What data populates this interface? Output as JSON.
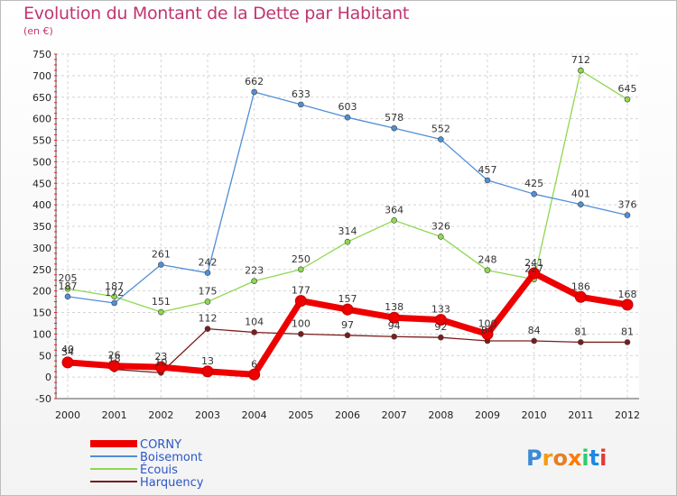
{
  "chart_data": {
    "type": "line",
    "title": "Evolution du Montant de la Dette par Habitant",
    "subtitle": "(en €)",
    "x": [
      "2000",
      "2001",
      "2002",
      "2003",
      "2004",
      "2005",
      "2006",
      "2007",
      "2008",
      "2009",
      "2010",
      "2011",
      "2012"
    ],
    "ylim": [
      -50,
      750
    ],
    "yticks": [
      -50,
      0,
      50,
      100,
      150,
      200,
      250,
      300,
      350,
      400,
      450,
      500,
      550,
      600,
      650,
      700,
      750
    ],
    "grid": true,
    "series": [
      {
        "name": "Harquency",
        "color": "#7a1c1c",
        "values": [
          40,
          18,
          10,
          112,
          104,
          100,
          97,
          94,
          92,
          84,
          84,
          81,
          81
        ]
      },
      {
        "name": "Écouis",
        "color": "#8ed850",
        "values": [
          205,
          187,
          151,
          175,
          223,
          250,
          314,
          364,
          326,
          248,
          227,
          712,
          645
        ]
      },
      {
        "name": "Boisemont",
        "color": "#4f8fd6",
        "values": [
          187,
          172,
          261,
          242,
          662,
          633,
          603,
          578,
          552,
          457,
          425,
          401,
          376
        ]
      },
      {
        "name": "CORNY",
        "color": "#ee0000",
        "values": [
          34,
          26,
          23,
          13,
          6,
          177,
          157,
          138,
          133,
          100,
          241,
          186,
          168
        ]
      }
    ],
    "legend_order": [
      "CORNY",
      "Boisemont",
      "Écouis",
      "Harquency"
    ]
  },
  "branding": {
    "logo_text": "Proxiti"
  }
}
